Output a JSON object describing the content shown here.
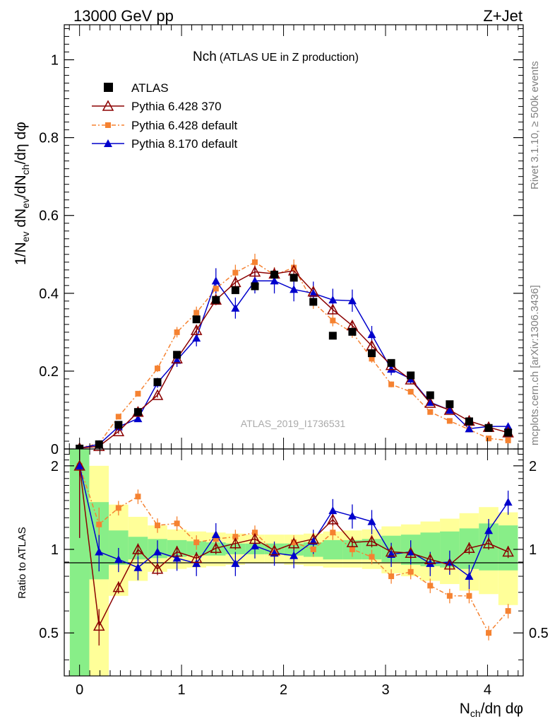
{
  "header": {
    "left": "13000 GeV pp",
    "right": "Z+Jet"
  },
  "side_labels": {
    "rivet": "Rivet 3.1.10, ≥ 500k events",
    "mcplots": "mcplots.cern.ch [arXiv:1306.3436]"
  },
  "chart_data": [
    {
      "type": "scatter",
      "title_main": "Nch",
      "title_sub": "(ATLAS UE in Z production)",
      "ylabel": "1/N_ev dN_ev/dN_ch/dη dφ",
      "ylabel_parts": {
        "a": "1/N",
        "a_sub": "ev",
        "b": " dN",
        "b_sub": "ev",
        "c": "/dN",
        "c_sub": "ch",
        "d": "/dη dφ"
      },
      "analysis_tag": "ATLAS_2019_I1736531",
      "xlim": [
        -0.15,
        4.35
      ],
      "ylim": [
        0,
        1.09
      ],
      "xticks": [
        0,
        1,
        2,
        3,
        4
      ],
      "yticks": [
        0,
        0.2,
        0.4,
        0.6,
        0.8,
        1
      ],
      "ytick_labels": [
        "0",
        "0.2",
        "0.4",
        "0.6",
        "0.8",
        "1"
      ],
      "legend": [
        "ATLAS",
        "Pythia 6.428 370",
        "Pythia 6.428 default",
        "Pythia 8.170 default"
      ],
      "x": [
        0,
        0.191,
        0.382,
        0.573,
        0.764,
        0.955,
        1.146,
        1.337,
        1.528,
        1.719,
        1.91,
        2.101,
        2.292,
        2.483,
        2.674,
        2.865,
        3.056,
        3.247,
        3.438,
        3.629,
        3.82,
        4.011,
        4.202
      ],
      "series": [
        {
          "name": "ATLAS",
          "values": [
            0.001,
            0.012,
            0.062,
            0.095,
            0.172,
            0.242,
            0.333,
            0.383,
            0.408,
            0.418,
            0.448,
            0.44,
            0.378,
            0.291,
            0.301,
            0.246,
            0.221,
            0.189,
            0.138,
            0.115,
            0.071,
            0.054,
            0.042
          ]
        },
        {
          "name": "Pythia 6.428 370",
          "values": [
            0.002,
            0.007,
            0.045,
            0.095,
            0.138,
            0.232,
            0.305,
            0.383,
            0.428,
            0.455,
            0.45,
            0.458,
            0.404,
            0.358,
            0.317,
            0.265,
            0.215,
            0.178,
            0.118,
            0.1,
            0.072,
            0.056,
            0.042
          ]
        },
        {
          "name": "Pythia 6.428 default",
          "values": [
            0.003,
            0.014,
            0.083,
            0.142,
            0.207,
            0.3,
            0.35,
            0.412,
            0.453,
            0.48,
            0.447,
            0.466,
            0.377,
            0.33,
            0.299,
            0.232,
            0.166,
            0.147,
            0.095,
            0.072,
            0.05,
            0.027,
            0.022
          ]
        },
        {
          "name": "Pythia 8.170 default",
          "values": [
            0.002,
            0.012,
            0.057,
            0.078,
            0.17,
            0.228,
            0.285,
            0.432,
            0.362,
            0.432,
            0.432,
            0.41,
            0.4,
            0.383,
            0.381,
            0.294,
            0.205,
            0.18,
            0.12,
            0.1,
            0.052,
            0.058,
            0.058
          ]
        }
      ]
    },
    {
      "type": "scatter",
      "ylabel": "Ratio to ATLAS",
      "yscale": "log",
      "ylim": [
        0.35,
        2.3
      ],
      "xlabel": "N_ch/dη dφ",
      "xlabel_parts": {
        "a": "N",
        "a_sub": "ch",
        "b": "/dη dφ"
      },
      "xticks": [
        0,
        1,
        2,
        3,
        4
      ],
      "xtick_labels": [
        "0",
        "1",
        "2",
        "3",
        "4"
      ],
      "yticks": [
        0.5,
        1,
        2
      ],
      "ytick_labels": [
        "0.5",
        "1",
        "2"
      ],
      "x": [
        0,
        0.191,
        0.382,
        0.573,
        0.764,
        0.955,
        1.146,
        1.337,
        1.528,
        1.719,
        1.91,
        2.101,
        2.292,
        2.483,
        2.674,
        2.865,
        3.056,
        3.247,
        3.438,
        3.629,
        3.82,
        4.011,
        4.202
      ],
      "series": [
        {
          "name": "Pythia 6.428 370",
          "values": [
            2.0,
            0.53,
            0.73,
            1.0,
            0.85,
            0.98,
            0.93,
            1.01,
            1.05,
            1.09,
            0.99,
            1.05,
            1.09,
            1.28,
            1.06,
            1.07,
            0.98,
            0.97,
            0.92,
            0.88,
            1.01,
            1.05,
            0.98
          ]
        },
        {
          "name": "Pythia 6.428 default",
          "values": [
            2.0,
            1.23,
            1.41,
            1.55,
            1.22,
            1.24,
            1.06,
            1.09,
            1.11,
            1.15,
            0.98,
            1.06,
            1.0,
            1.15,
            1.0,
            0.94,
            0.8,
            0.83,
            0.74,
            0.68,
            0.68,
            0.5,
            0.6
          ]
        },
        {
          "name": "Pythia 8.170 default",
          "values": [
            2.0,
            0.98,
            0.92,
            0.86,
            0.98,
            0.93,
            0.89,
            1.13,
            0.89,
            1.03,
            0.97,
            0.95,
            1.07,
            1.38,
            1.32,
            1.26,
            0.96,
            0.98,
            0.89,
            0.9,
            0.8,
            1.17,
            1.48
          ]
        }
      ],
      "bands": {
        "green": [
          [
            0.33,
            2.3
          ],
          [
            0.78,
            1.48
          ],
          [
            0.88,
            1.17
          ],
          [
            0.92,
            1.11
          ],
          [
            0.93,
            1.09
          ],
          [
            0.94,
            1.08
          ],
          [
            0.95,
            1.07
          ],
          [
            0.95,
            1.06
          ],
          [
            0.96,
            1.05
          ],
          [
            0.96,
            1.05
          ],
          [
            0.96,
            1.05
          ],
          [
            0.95,
            1.05
          ],
          [
            0.94,
            1.06
          ],
          [
            0.92,
            1.08
          ],
          [
            0.92,
            1.08
          ],
          [
            0.92,
            1.09
          ],
          [
            0.9,
            1.12
          ],
          [
            0.88,
            1.13
          ],
          [
            0.87,
            1.15
          ],
          [
            0.86,
            1.16
          ],
          [
            0.85,
            1.19
          ],
          [
            0.84,
            1.24
          ],
          [
            0.84,
            1.22
          ]
        ],
        "yellow": [
          [
            0.33,
            2.3
          ],
          [
            0.33,
            2.0
          ],
          [
            0.68,
            1.45
          ],
          [
            0.77,
            1.31
          ],
          [
            0.83,
            1.22
          ],
          [
            0.85,
            1.18
          ],
          [
            0.86,
            1.16
          ],
          [
            0.87,
            1.15
          ],
          [
            0.88,
            1.14
          ],
          [
            0.89,
            1.13
          ],
          [
            0.89,
            1.13
          ],
          [
            0.88,
            1.13
          ],
          [
            0.87,
            1.14
          ],
          [
            0.86,
            1.16
          ],
          [
            0.86,
            1.17
          ],
          [
            0.85,
            1.18
          ],
          [
            0.82,
            1.21
          ],
          [
            0.8,
            1.23
          ],
          [
            0.77,
            1.26
          ],
          [
            0.75,
            1.29
          ],
          [
            0.71,
            1.35
          ],
          [
            0.69,
            1.42
          ],
          [
            0.63,
            1.36
          ]
        ]
      }
    }
  ]
}
